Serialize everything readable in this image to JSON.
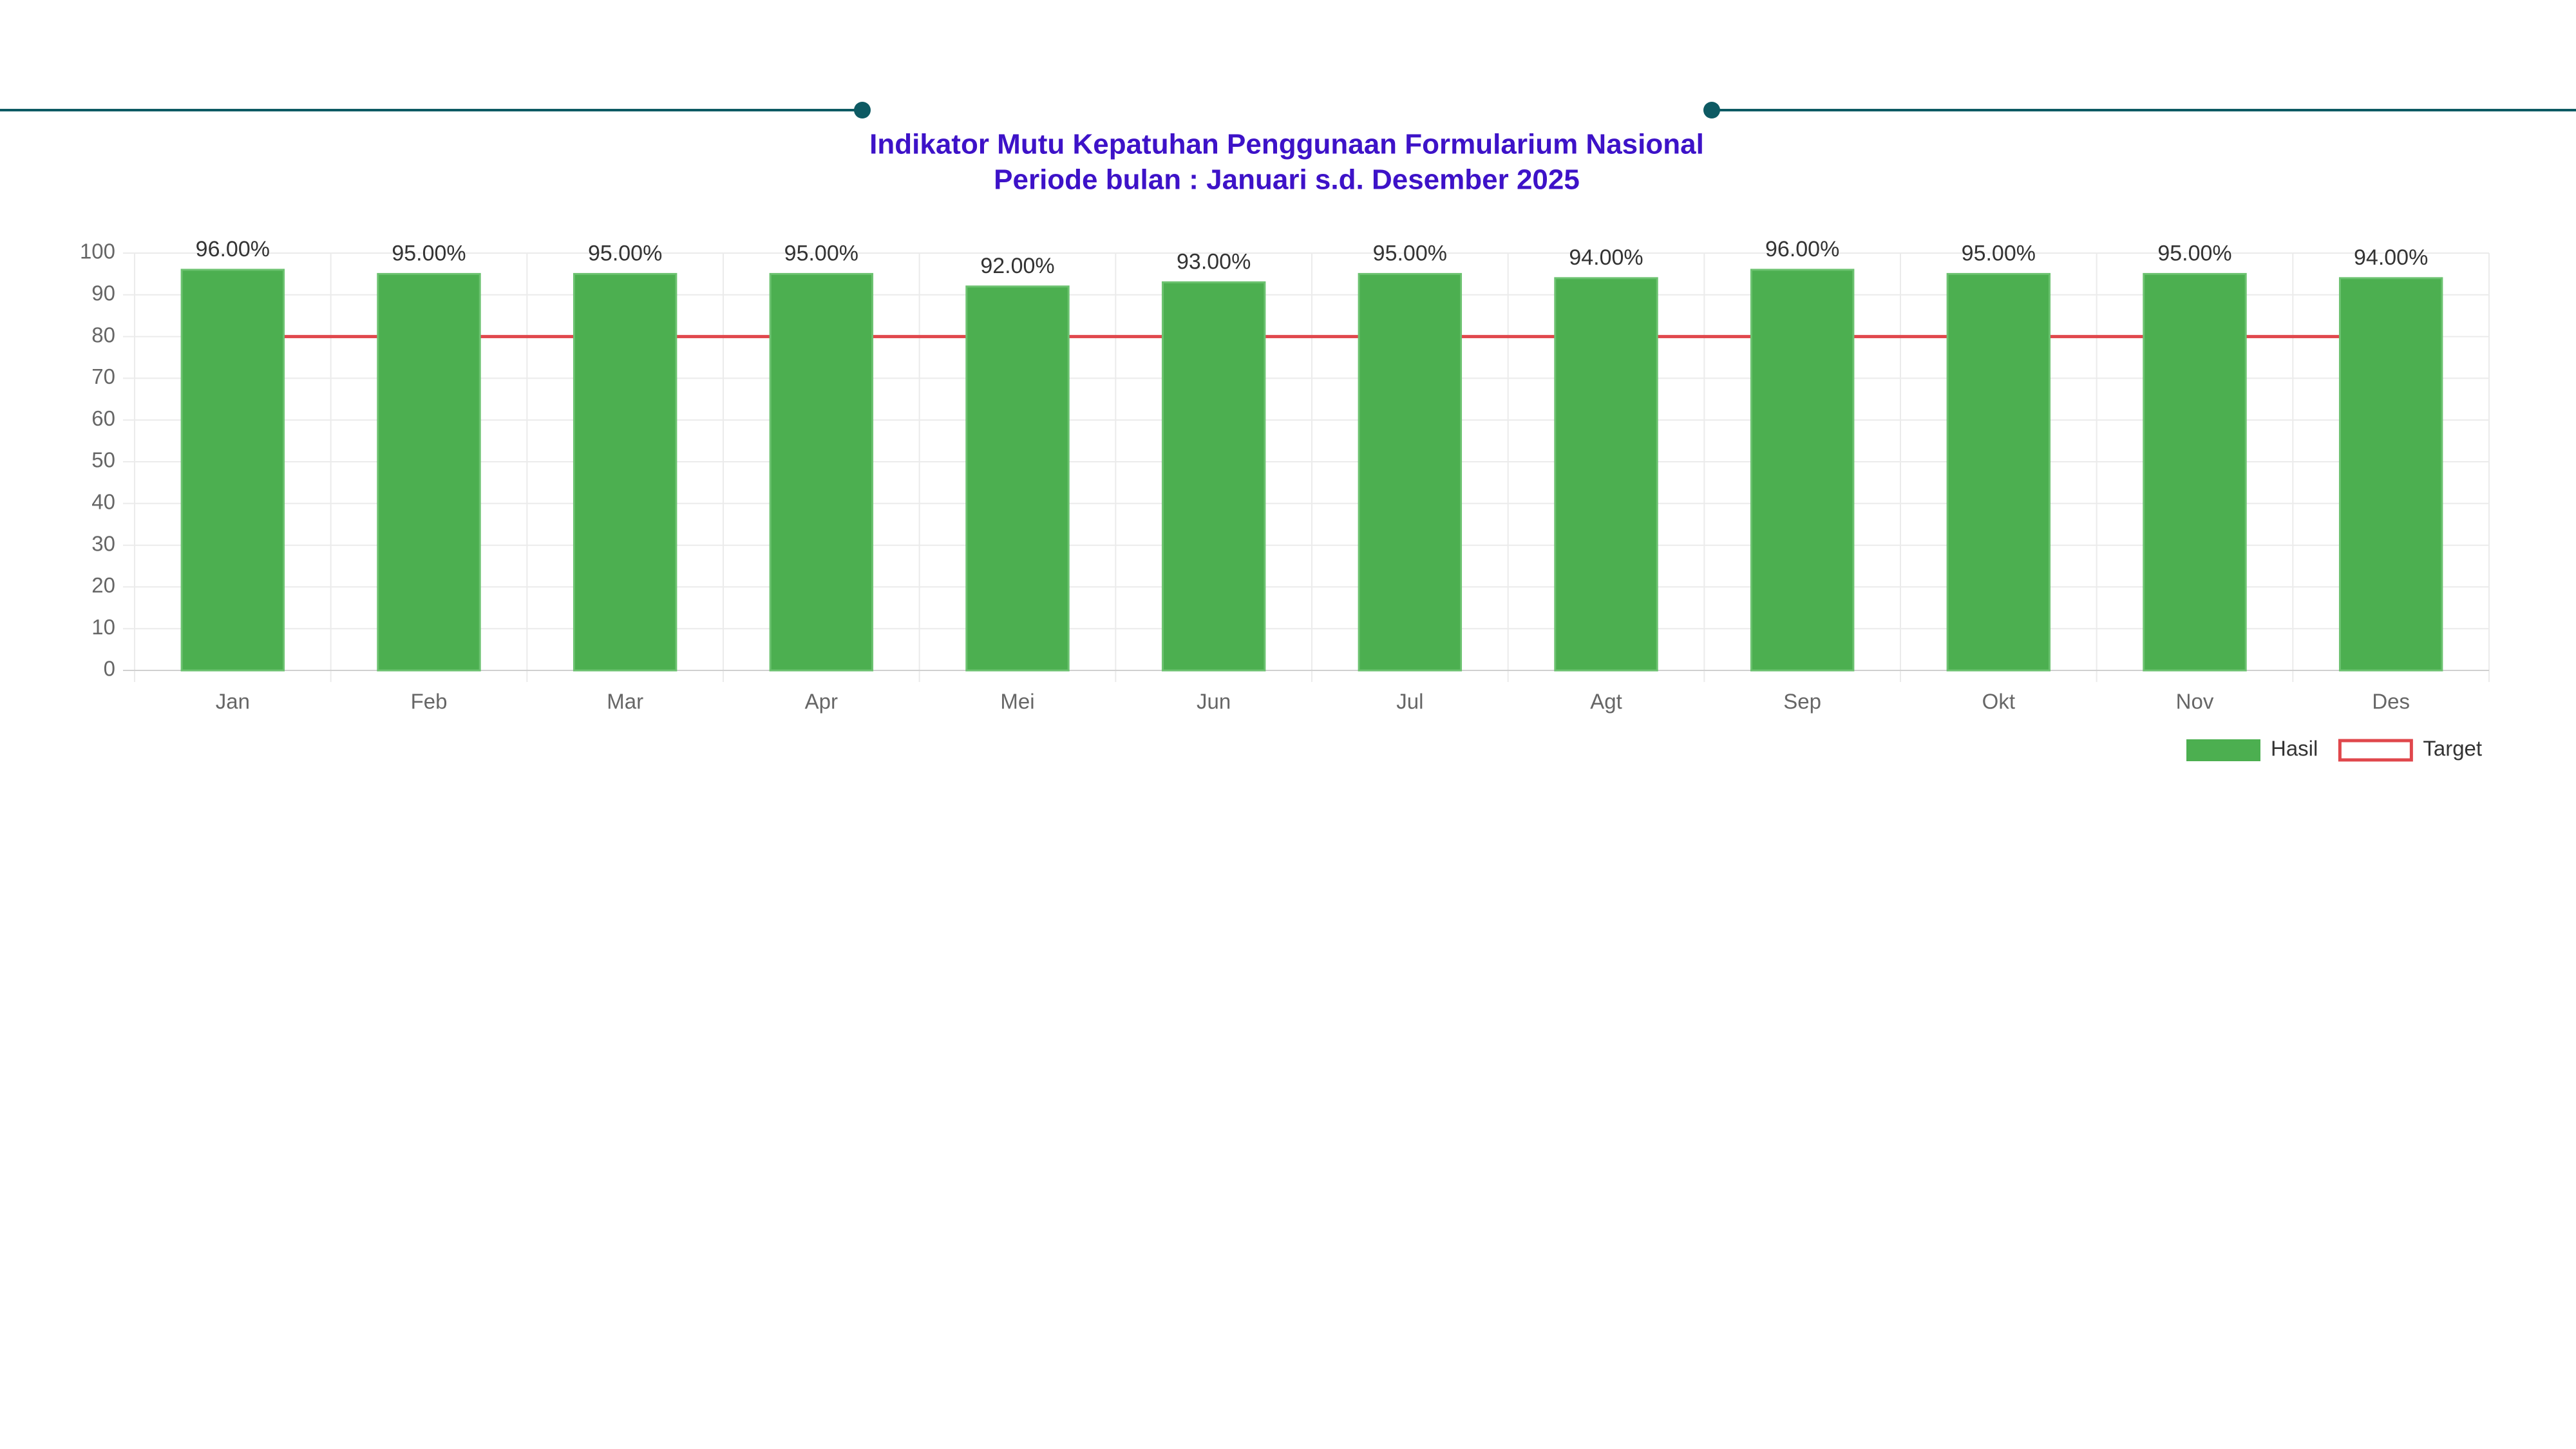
{
  "chart_data": {
    "type": "bar",
    "title": [
      "Indikator Mutu Kepatuhan Penggunaan Formularium Nasional",
      "Periode bulan : Januari s.d. Desember 2025"
    ],
    "categories": [
      "Jan",
      "Feb",
      "Mar",
      "Apr",
      "Mei",
      "Jun",
      "Jul",
      "Agt",
      "Sep",
      "Okt",
      "Nov",
      "Des"
    ],
    "series": [
      {
        "name": "Hasil",
        "type": "bar",
        "color": "#4caf50",
        "values": [
          96,
          95,
          95,
          95,
          92,
          93,
          95,
          94,
          96,
          95,
          95,
          94
        ],
        "value_labels": [
          "96.00%",
          "95.00%",
          "95.00%",
          "95.00%",
          "92.00%",
          "93.00%",
          "95.00%",
          "94.00%",
          "96.00%",
          "95.00%",
          "95.00%",
          "94.00%"
        ]
      },
      {
        "name": "Target",
        "type": "line",
        "color": "#e0474c",
        "values": [
          80,
          80,
          80,
          80,
          80,
          80,
          80,
          80,
          80,
          80,
          80,
          80
        ]
      }
    ],
    "ylim": [
      0,
      100
    ],
    "yticks": [
      0,
      10,
      20,
      30,
      40,
      50,
      60,
      70,
      80,
      90,
      100
    ],
    "grid": true,
    "legend": "bottom-right"
  }
}
